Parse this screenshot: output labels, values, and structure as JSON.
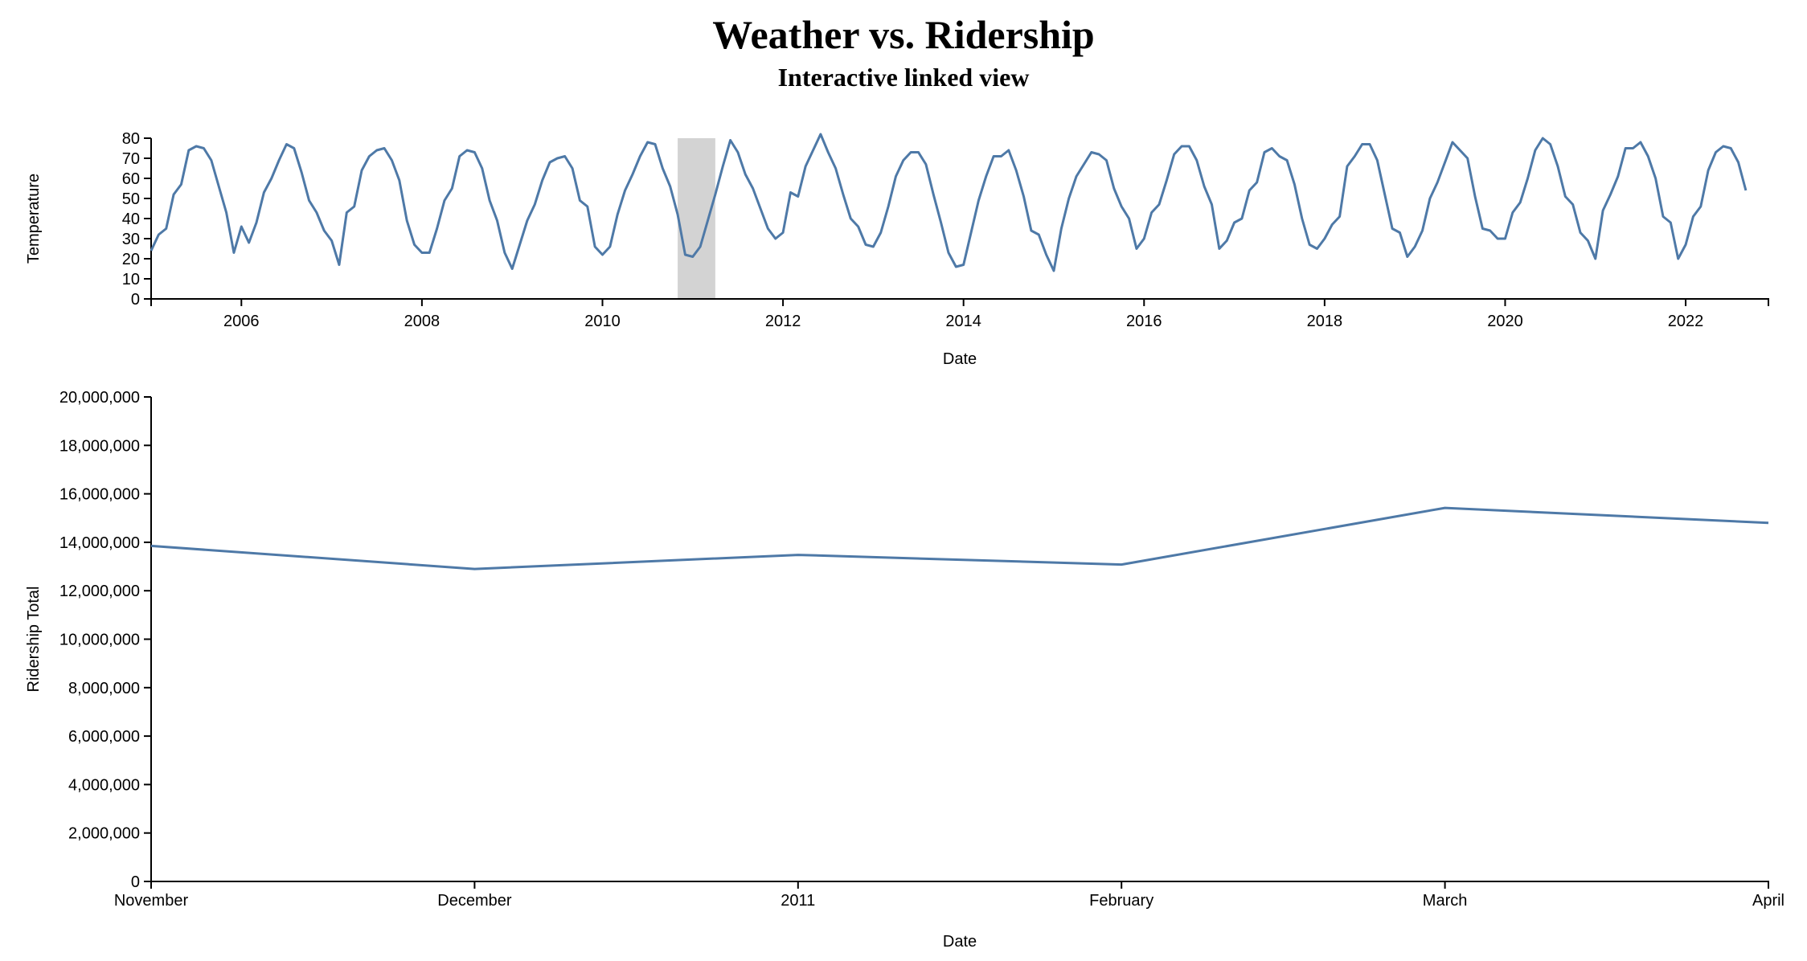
{
  "header": {
    "title": "Weather vs. Ridership",
    "subtitle": "Interactive linked view"
  },
  "colors": {
    "line": "#4e79a7",
    "brush": "#d3d3d3"
  },
  "chart_data": [
    {
      "type": "line",
      "name": "temperature-overview",
      "xlabel": "Date",
      "ylabel": "Temperature",
      "xlim": [
        "2005-01",
        "2022-12"
      ],
      "ylim": [
        0,
        80
      ],
      "y_ticks": [
        0,
        10,
        20,
        30,
        40,
        50,
        60,
        70,
        80
      ],
      "x_ticks": [
        {
          "date": "2006-01",
          "label": "2006"
        },
        {
          "date": "2008-01",
          "label": "2008"
        },
        {
          "date": "2010-01",
          "label": "2010"
        },
        {
          "date": "2012-01",
          "label": "2012"
        },
        {
          "date": "2014-01",
          "label": "2014"
        },
        {
          "date": "2016-01",
          "label": "2016"
        },
        {
          "date": "2018-01",
          "label": "2018"
        },
        {
          "date": "2020-01",
          "label": "2020"
        },
        {
          "date": "2022-01",
          "label": "2022"
        }
      ],
      "brush": {
        "start": "2010-11",
        "end": "2011-04"
      },
      "start": "2005-01",
      "values": [
        24,
        32,
        35,
        52,
        57,
        74,
        76,
        75,
        69,
        56,
        43,
        23,
        36,
        28,
        38,
        53,
        60,
        69,
        77,
        75,
        63,
        49,
        43,
        34,
        29,
        17,
        43,
        46,
        64,
        71,
        74,
        75,
        69,
        59,
        39,
        27,
        23,
        23,
        35,
        49,
        55,
        71,
        74,
        73,
        65,
        49,
        39,
        23,
        15,
        27,
        39,
        47,
        59,
        68,
        70,
        71,
        65,
        49,
        46,
        26,
        22,
        26,
        42,
        54,
        62,
        71,
        78,
        77,
        65,
        56,
        42,
        22,
        21,
        26,
        39,
        52,
        66,
        79,
        73,
        62,
        55,
        45,
        35,
        30,
        33,
        53,
        51,
        66,
        74,
        82,
        73,
        65,
        52,
        40,
        36,
        27,
        26,
        33,
        46,
        61,
        69,
        73,
        73,
        67,
        52,
        38,
        23,
        16,
        17,
        33,
        49,
        61,
        71,
        71,
        74,
        64,
        51,
        34,
        32,
        22,
        14,
        35,
        50,
        61,
        67,
        73,
        72,
        69,
        55,
        46,
        40,
        25,
        30,
        43,
        47,
        59,
        72,
        76,
        76,
        69,
        56,
        47,
        25,
        29,
        38,
        40,
        54,
        58,
        73,
        75,
        71,
        69,
        57,
        40,
        27,
        25,
        30,
        37,
        41,
        66,
        71,
        77,
        77,
        69,
        52,
        35,
        33,
        21,
        26,
        34,
        50,
        58,
        68,
        78,
        74,
        70,
        51,
        35,
        34,
        30,
        30,
        43,
        48,
        60,
        74,
        80,
        77,
        66,
        51,
        47,
        33,
        29,
        20,
        44,
        52,
        61,
        75,
        75,
        78,
        71,
        60,
        41,
        38,
        20,
        27,
        41,
        46,
        64,
        73,
        76,
        75,
        68,
        54
      ]
    },
    {
      "type": "line",
      "name": "ridership-detail",
      "xlabel": "Date",
      "ylabel": "Ridership Total",
      "ylim": [
        0,
        20000000
      ],
      "y_ticks": [
        {
          "value": 0,
          "label": "0"
        },
        {
          "value": 2000000,
          "label": "2,000,000"
        },
        {
          "value": 4000000,
          "label": "4,000,000"
        },
        {
          "value": 6000000,
          "label": "6,000,000"
        },
        {
          "value": 8000000,
          "label": "8,000,000"
        },
        {
          "value": 10000000,
          "label": "10,000,000"
        },
        {
          "value": 12000000,
          "label": "12,000,000"
        },
        {
          "value": 14000000,
          "label": "14,000,000"
        },
        {
          "value": 16000000,
          "label": "16,000,000"
        },
        {
          "value": 18000000,
          "label": "18,000,000"
        },
        {
          "value": 20000000,
          "label": "20,000,000"
        }
      ],
      "x_ticks": [
        {
          "date": "2010-11",
          "label": "November"
        },
        {
          "date": "2010-12",
          "label": "December"
        },
        {
          "date": "2011-01",
          "label": "2011"
        },
        {
          "date": "2011-02",
          "label": "February"
        },
        {
          "date": "2011-03",
          "label": "March"
        },
        {
          "date": "2011-04",
          "label": "April"
        }
      ],
      "points": [
        {
          "date": "2010-11",
          "value": 13850000
        },
        {
          "date": "2010-12",
          "value": 12900000
        },
        {
          "date": "2011-01",
          "value": 13480000
        },
        {
          "date": "2011-02",
          "value": 13080000
        },
        {
          "date": "2011-03",
          "value": 15420000
        },
        {
          "date": "2011-04",
          "value": 14800000
        }
      ]
    }
  ]
}
